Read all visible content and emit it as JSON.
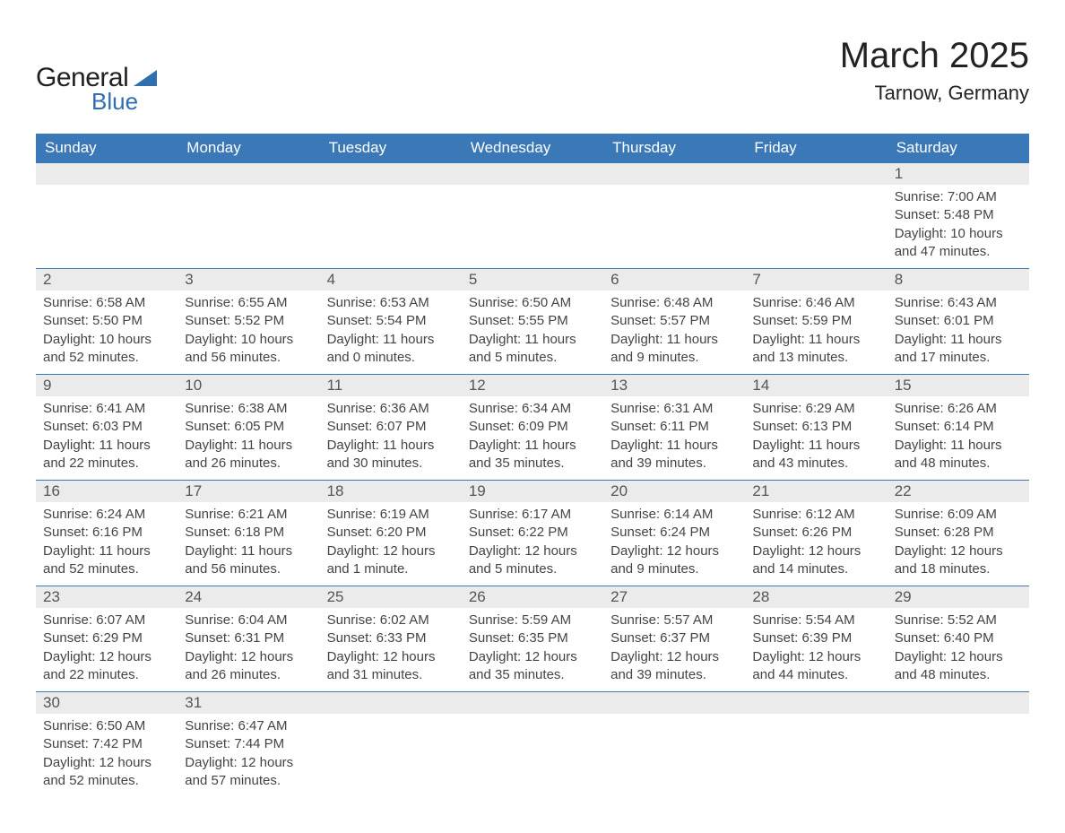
{
  "logo": {
    "word1": "General",
    "word2": "Blue"
  },
  "title": "March 2025",
  "subtitle": "Tarnow, Germany",
  "colors": {
    "header_bg": "#3a78b8",
    "header_text": "#ffffff",
    "daynum_bg": "#ebebeb",
    "border": "#3a78b8",
    "logo_blue": "#2f6fb0"
  },
  "weekdays": [
    "Sunday",
    "Monday",
    "Tuesday",
    "Wednesday",
    "Thursday",
    "Friday",
    "Saturday"
  ],
  "rows": [
    [
      null,
      null,
      null,
      null,
      null,
      null,
      {
        "n": "1",
        "sunrise": "Sunrise: 7:00 AM",
        "sunset": "Sunset: 5:48 PM",
        "day1": "Daylight: 10 hours",
        "day2": "and 47 minutes."
      }
    ],
    [
      {
        "n": "2",
        "sunrise": "Sunrise: 6:58 AM",
        "sunset": "Sunset: 5:50 PM",
        "day1": "Daylight: 10 hours",
        "day2": "and 52 minutes."
      },
      {
        "n": "3",
        "sunrise": "Sunrise: 6:55 AM",
        "sunset": "Sunset: 5:52 PM",
        "day1": "Daylight: 10 hours",
        "day2": "and 56 minutes."
      },
      {
        "n": "4",
        "sunrise": "Sunrise: 6:53 AM",
        "sunset": "Sunset: 5:54 PM",
        "day1": "Daylight: 11 hours",
        "day2": "and 0 minutes."
      },
      {
        "n": "5",
        "sunrise": "Sunrise: 6:50 AM",
        "sunset": "Sunset: 5:55 PM",
        "day1": "Daylight: 11 hours",
        "day2": "and 5 minutes."
      },
      {
        "n": "6",
        "sunrise": "Sunrise: 6:48 AM",
        "sunset": "Sunset: 5:57 PM",
        "day1": "Daylight: 11 hours",
        "day2": "and 9 minutes."
      },
      {
        "n": "7",
        "sunrise": "Sunrise: 6:46 AM",
        "sunset": "Sunset: 5:59 PM",
        "day1": "Daylight: 11 hours",
        "day2": "and 13 minutes."
      },
      {
        "n": "8",
        "sunrise": "Sunrise: 6:43 AM",
        "sunset": "Sunset: 6:01 PM",
        "day1": "Daylight: 11 hours",
        "day2": "and 17 minutes."
      }
    ],
    [
      {
        "n": "9",
        "sunrise": "Sunrise: 6:41 AM",
        "sunset": "Sunset: 6:03 PM",
        "day1": "Daylight: 11 hours",
        "day2": "and 22 minutes."
      },
      {
        "n": "10",
        "sunrise": "Sunrise: 6:38 AM",
        "sunset": "Sunset: 6:05 PM",
        "day1": "Daylight: 11 hours",
        "day2": "and 26 minutes."
      },
      {
        "n": "11",
        "sunrise": "Sunrise: 6:36 AM",
        "sunset": "Sunset: 6:07 PM",
        "day1": "Daylight: 11 hours",
        "day2": "and 30 minutes."
      },
      {
        "n": "12",
        "sunrise": "Sunrise: 6:34 AM",
        "sunset": "Sunset: 6:09 PM",
        "day1": "Daylight: 11 hours",
        "day2": "and 35 minutes."
      },
      {
        "n": "13",
        "sunrise": "Sunrise: 6:31 AM",
        "sunset": "Sunset: 6:11 PM",
        "day1": "Daylight: 11 hours",
        "day2": "and 39 minutes."
      },
      {
        "n": "14",
        "sunrise": "Sunrise: 6:29 AM",
        "sunset": "Sunset: 6:13 PM",
        "day1": "Daylight: 11 hours",
        "day2": "and 43 minutes."
      },
      {
        "n": "15",
        "sunrise": "Sunrise: 6:26 AM",
        "sunset": "Sunset: 6:14 PM",
        "day1": "Daylight: 11 hours",
        "day2": "and 48 minutes."
      }
    ],
    [
      {
        "n": "16",
        "sunrise": "Sunrise: 6:24 AM",
        "sunset": "Sunset: 6:16 PM",
        "day1": "Daylight: 11 hours",
        "day2": "and 52 minutes."
      },
      {
        "n": "17",
        "sunrise": "Sunrise: 6:21 AM",
        "sunset": "Sunset: 6:18 PM",
        "day1": "Daylight: 11 hours",
        "day2": "and 56 minutes."
      },
      {
        "n": "18",
        "sunrise": "Sunrise: 6:19 AM",
        "sunset": "Sunset: 6:20 PM",
        "day1": "Daylight: 12 hours",
        "day2": "and 1 minute."
      },
      {
        "n": "19",
        "sunrise": "Sunrise: 6:17 AM",
        "sunset": "Sunset: 6:22 PM",
        "day1": "Daylight: 12 hours",
        "day2": "and 5 minutes."
      },
      {
        "n": "20",
        "sunrise": "Sunrise: 6:14 AM",
        "sunset": "Sunset: 6:24 PM",
        "day1": "Daylight: 12 hours",
        "day2": "and 9 minutes."
      },
      {
        "n": "21",
        "sunrise": "Sunrise: 6:12 AM",
        "sunset": "Sunset: 6:26 PM",
        "day1": "Daylight: 12 hours",
        "day2": "and 14 minutes."
      },
      {
        "n": "22",
        "sunrise": "Sunrise: 6:09 AM",
        "sunset": "Sunset: 6:28 PM",
        "day1": "Daylight: 12 hours",
        "day2": "and 18 minutes."
      }
    ],
    [
      {
        "n": "23",
        "sunrise": "Sunrise: 6:07 AM",
        "sunset": "Sunset: 6:29 PM",
        "day1": "Daylight: 12 hours",
        "day2": "and 22 minutes."
      },
      {
        "n": "24",
        "sunrise": "Sunrise: 6:04 AM",
        "sunset": "Sunset: 6:31 PM",
        "day1": "Daylight: 12 hours",
        "day2": "and 26 minutes."
      },
      {
        "n": "25",
        "sunrise": "Sunrise: 6:02 AM",
        "sunset": "Sunset: 6:33 PM",
        "day1": "Daylight: 12 hours",
        "day2": "and 31 minutes."
      },
      {
        "n": "26",
        "sunrise": "Sunrise: 5:59 AM",
        "sunset": "Sunset: 6:35 PM",
        "day1": "Daylight: 12 hours",
        "day2": "and 35 minutes."
      },
      {
        "n": "27",
        "sunrise": "Sunrise: 5:57 AM",
        "sunset": "Sunset: 6:37 PM",
        "day1": "Daylight: 12 hours",
        "day2": "and 39 minutes."
      },
      {
        "n": "28",
        "sunrise": "Sunrise: 5:54 AM",
        "sunset": "Sunset: 6:39 PM",
        "day1": "Daylight: 12 hours",
        "day2": "and 44 minutes."
      },
      {
        "n": "29",
        "sunrise": "Sunrise: 5:52 AM",
        "sunset": "Sunset: 6:40 PM",
        "day1": "Daylight: 12 hours",
        "day2": "and 48 minutes."
      }
    ],
    [
      {
        "n": "30",
        "sunrise": "Sunrise: 6:50 AM",
        "sunset": "Sunset: 7:42 PM",
        "day1": "Daylight: 12 hours",
        "day2": "and 52 minutes."
      },
      {
        "n": "31",
        "sunrise": "Sunrise: 6:47 AM",
        "sunset": "Sunset: 7:44 PM",
        "day1": "Daylight: 12 hours",
        "day2": "and 57 minutes."
      },
      null,
      null,
      null,
      null,
      null
    ]
  ]
}
